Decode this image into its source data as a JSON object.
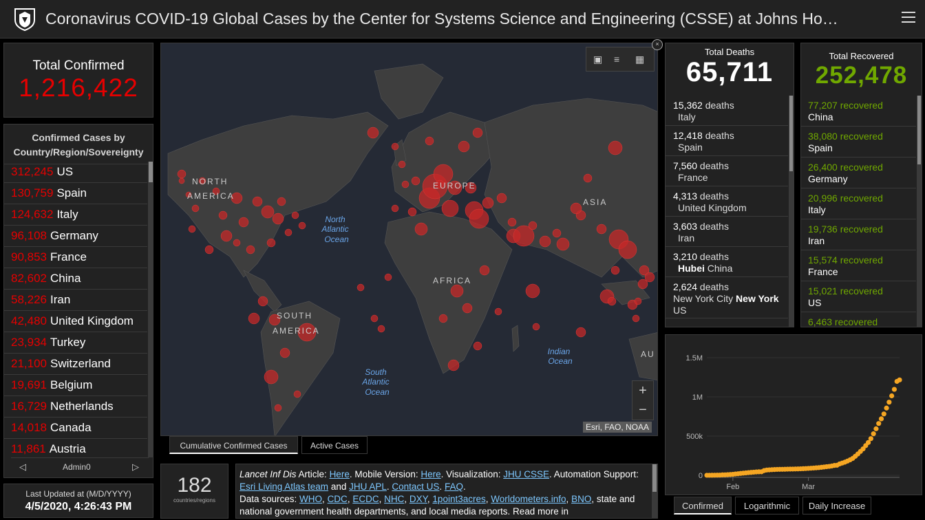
{
  "header": {
    "title": "Coronavirus COVID-19 Global Cases by the Center for Systems Science and Engineering (CSSE) at Johns Ho…"
  },
  "total_confirmed": {
    "label": "Total Confirmed",
    "value": "1,216,422"
  },
  "country_list": {
    "header": "Confirmed Cases by Country/Region/Sovereignty",
    "items": [
      {
        "num": "312,245",
        "name": "US"
      },
      {
        "num": "130,759",
        "name": "Spain"
      },
      {
        "num": "124,632",
        "name": "Italy"
      },
      {
        "num": "96,108",
        "name": "Germany"
      },
      {
        "num": "90,853",
        "name": "France"
      },
      {
        "num": "82,602",
        "name": "China"
      },
      {
        "num": "58,226",
        "name": "Iran"
      },
      {
        "num": "42,480",
        "name": "United Kingdom"
      },
      {
        "num": "23,934",
        "name": "Turkey"
      },
      {
        "num": "21,100",
        "name": "Switzerland"
      },
      {
        "num": "19,691",
        "name": "Belgium"
      },
      {
        "num": "16,729",
        "name": "Netherlands"
      },
      {
        "num": "14,018",
        "name": "Canada"
      },
      {
        "num": "11,861",
        "name": "Austria"
      }
    ],
    "pager_label": "Admin0"
  },
  "last_updated": {
    "label": "Last Updated at (M/D/YYYY)",
    "value": "4/5/2020, 4:26:43 PM"
  },
  "map": {
    "labels": {
      "north_america_1": "NORTH",
      "north_america_2": "AMERICA",
      "south_america_1": "SOUTH",
      "south_america_2": "AMERICA",
      "europe": "EUROPE",
      "asia": "ASIA",
      "africa": "AFRICA",
      "au": "AU",
      "north_atlantic_1": "North",
      "north_atlantic_2": "Atlantic",
      "north_atlantic_3": "Ocean",
      "south_atlantic_1": "South",
      "south_atlantic_2": "Atlantic",
      "south_atlantic_3": "Ocean",
      "indian_1": "Indian",
      "indian_2": "Ocean"
    },
    "attribution": "Esri, FAO, NOAA",
    "zoom_in": "+",
    "zoom_out": "−",
    "tabs": [
      "Cumulative Confirmed Cases",
      "Active Cases"
    ]
  },
  "countries_count": {
    "value": "182",
    "label": "countries/regions"
  },
  "info": {
    "t1": "Lancet Inf Dis",
    "t2": " Article: ",
    "a1": "Here",
    "t3": ". Mobile Version: ",
    "a2": "Here",
    "t4": ". Visualization: ",
    "a3": "JHU CSSE",
    "t5": ". Automation Support: ",
    "a4": "Esri Living Atlas team",
    "t6": " and ",
    "a5": "JHU APL",
    "t7": ". ",
    "a6": "Contact US",
    "t8": ". ",
    "a7": "FAQ",
    "t9": ".",
    "t10": "Data sources: ",
    "a8": "WHO",
    "a9": "CDC",
    "a10": "ECDC",
    "a11": "NHC",
    "a12": "DXY",
    "a13": "1point3acres",
    "a14": "Worldometers.info",
    "a15": "BNO",
    "t11": ", state and national government health departments, and local media reports.  Read more in"
  },
  "deaths": {
    "label": "Total Deaths",
    "value": "65,711",
    "items": [
      {
        "num": "15,362",
        "suffix": " deaths",
        "place": "Italy"
      },
      {
        "num": "12,418",
        "suffix": " deaths",
        "place": "Spain"
      },
      {
        "num": "7,560",
        "suffix": " deaths",
        "place": "France"
      },
      {
        "num": "4,313",
        "suffix": " deaths",
        "place": "United Kingdom"
      },
      {
        "num": "3,603",
        "suffix": " deaths",
        "place": "Iran"
      },
      {
        "num": "3,210",
        "suffix": " deaths",
        "place_bold": "Hubei",
        "place": " China"
      },
      {
        "num": "2,624",
        "suffix": " deaths",
        "place_a": "New York City ",
        "place_bold": "New York",
        "place": " US"
      }
    ]
  },
  "recovered": {
    "label": "Total Recovered",
    "value": "252,478",
    "items": [
      {
        "num": "77,207",
        "suffix": " recovered",
        "place": "China"
      },
      {
        "num": "38,080",
        "suffix": " recovered",
        "place": "Spain"
      },
      {
        "num": "26,400",
        "suffix": " recovered",
        "place": "Germany"
      },
      {
        "num": "20,996",
        "suffix": " recovered",
        "place": "Italy"
      },
      {
        "num": "19,736",
        "suffix": " recovered",
        "place": "Iran"
      },
      {
        "num": "15,574",
        "suffix": " recovered",
        "place": "France"
      },
      {
        "num": "15,021",
        "suffix": " recovered",
        "place": "US"
      },
      {
        "num": "6,463",
        "suffix": " recovered",
        "place": ""
      }
    ]
  },
  "chart_tabs": [
    "Confirmed",
    "Logarithmic",
    "Daily Increase"
  ],
  "colors": {
    "confirmed": "#e60000",
    "recovered": "#70a800",
    "chart_points": "#f5a623",
    "background": "#000000",
    "panel": "#222222"
  },
  "chart_data": {
    "type": "scatter",
    "title": "",
    "xlabel": "",
    "ylabel": "",
    "x_tick_labels": [
      "Feb",
      "Mar"
    ],
    "y_tick_labels": [
      "0",
      "500k",
      "1M",
      "1.5M"
    ],
    "ylim": [
      0,
      1500000
    ],
    "grid": true,
    "series": [
      {
        "values": [
          555,
          654,
          941,
          1434,
          2118,
          2927,
          5578,
          6166,
          8234,
          9927,
          12038,
          16787,
          19881,
          23892,
          27635,
          30817,
          34391,
          37120,
          40150,
          42762,
          44802,
          45221,
          60368,
          66885,
          69030,
          71224,
          73258,
          75136,
          75639,
          76197,
          76819,
          78572,
          78958,
          79561,
          80406,
          81388,
          82746,
          84112,
          86011,
          88369,
          90306,
          92840,
          95120,
          97886,
          101801,
          105847,
          109821,
          113590,
          118620,
          125875,
          128352,
          145205,
          156101,
          167454,
          181574,
          197102,
          214821,
          242570,
          272208,
          304507,
          336953,
          378235,
          418045,
          467653,
          529591,
          593291,
          660706,
          720117,
          782365,
          857487,
          932605,
          1013157,
          1095917,
          1197405,
          1216422
        ]
      }
    ]
  }
}
